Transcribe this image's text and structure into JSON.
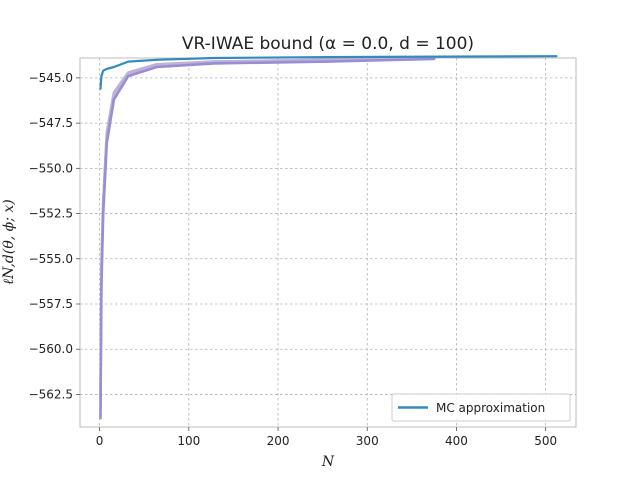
{
  "chart_data": {
    "type": "line",
    "title": "VR-IWAE bound (α = 0.0, d = 100)",
    "xlabel": "N",
    "ylabel": "ℓN,d(θ, ϕ; x)",
    "xlim": [
      -22,
      534
    ],
    "ylim": [
      -564.3,
      -543.9
    ],
    "xticks": [
      0,
      100,
      200,
      300,
      400,
      500
    ],
    "yticks": [
      -545.0,
      -547.5,
      -550.0,
      -552.5,
      -555.0,
      -557.5,
      -560.0,
      -562.5
    ],
    "xtick_labels": [
      "0",
      "100",
      "200",
      "300",
      "400",
      "500"
    ],
    "ytick_labels": [
      "−545.0",
      "−547.5",
      "−550.0",
      "−552.5",
      "−555.0",
      "−557.5",
      "−560.0",
      "−562.5"
    ],
    "grid": true,
    "legend_position": "lower right",
    "series": [
      {
        "name": "MC approximation",
        "color": "#348abd",
        "x": [
          1,
          2,
          4,
          8,
          16,
          32,
          64,
          128,
          256,
          512
        ],
        "y": [
          -545.6,
          -544.9,
          -544.6,
          -544.5,
          -544.4,
          -544.1,
          -544.0,
          -543.9,
          -543.85,
          -543.8
        ]
      },
      {
        "color": "#988ed5",
        "x": [
          1,
          2,
          4,
          8,
          16,
          32,
          64,
          128,
          256,
          375
        ],
        "y": [
          -563.8,
          -556.5,
          -552.5,
          -548.6,
          -546.2,
          -544.9,
          -544.4,
          -544.2,
          -544.1,
          -543.95
        ]
      },
      {
        "color": "#c4b0d4",
        "x": [
          1,
          2,
          4,
          8,
          16,
          32,
          64,
          128,
          256,
          375
        ],
        "y": [
          -563.2,
          -555.8,
          -552.0,
          -548.2,
          -545.9,
          -544.8,
          -544.3,
          -544.1,
          -544.0,
          -543.9
        ]
      },
      {
        "color": "#b7b7cf",
        "x": [
          1,
          2,
          4,
          8,
          16,
          32,
          64,
          128,
          256,
          375
        ],
        "y": [
          -562.8,
          -555.2,
          -551.8,
          -548.0,
          -545.8,
          -544.7,
          -544.25,
          -544.1,
          -544.0,
          -543.9
        ]
      }
    ]
  }
}
